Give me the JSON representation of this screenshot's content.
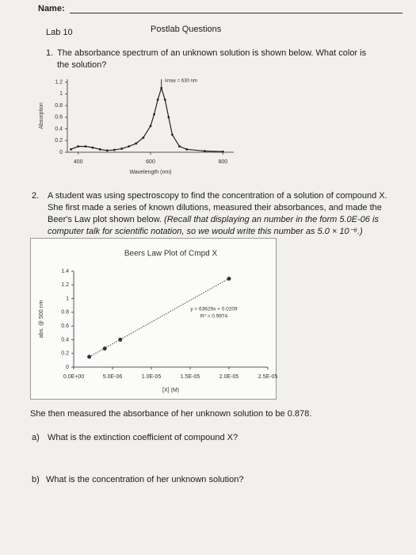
{
  "header": {
    "name_label": "Name:",
    "lab": "Lab 10",
    "title": "Postlab Questions"
  },
  "questions": [
    {
      "number": "1.",
      "text": "The absorbance spectrum of an unknown solution is shown below.  What color is the solution?"
    },
    {
      "number": "2.",
      "text": "A student was using spectroscopy to find the concentration of a solution of compound X. She first made a series of known dilutions, measured their absorbances, and made the Beer's Law plot shown below.",
      "note": "(Recall that displaying an number in the form 5.0E-06 is computer talk for scientific notation, so we would write this number as 5.0 × 10⁻⁶.)"
    }
  ],
  "chart_data": [
    {
      "type": "line",
      "xlabel": "Wavelength (nm)",
      "ylabel": "Absorption",
      "annotation": "λmax = 630 nm",
      "color": "#222222",
      "x": [
        380,
        400,
        420,
        440,
        460,
        480,
        500,
        520,
        540,
        560,
        580,
        600,
        610,
        620,
        630,
        640,
        650,
        660,
        680,
        700,
        750,
        800
      ],
      "values": [
        0.05,
        0.1,
        0.1,
        0.08,
        0.05,
        0.03,
        0.04,
        0.06,
        0.1,
        0.15,
        0.25,
        0.45,
        0.65,
        0.9,
        1.1,
        0.9,
        0.6,
        0.3,
        0.1,
        0.05,
        0.02,
        0.01
      ],
      "xlim": [
        370,
        830
      ],
      "ylim": [
        0,
        1.25
      ],
      "xticks": [
        400,
        600,
        800
      ],
      "yticks": [
        0,
        0.2,
        0.4,
        0.6,
        0.8,
        1,
        1.2
      ]
    },
    {
      "type": "scatter",
      "title": "Beers Law Plot of Cmpd X",
      "xlabel": "[X] (M)",
      "ylabel": "abs. @ 500 nm",
      "color": "#333333",
      "x": [
        2e-06,
        4e-06,
        6e-06,
        2e-05
      ],
      "values": [
        0.15,
        0.27,
        0.4,
        1.29
      ],
      "xlim": [
        0,
        2.5e-05
      ],
      "ylim": [
        0,
        1.4
      ],
      "xticks": [
        {
          "value": 0,
          "label": "0.0E+00"
        },
        {
          "value": 5e-06,
          "label": "5.0E-06"
        },
        {
          "value": 1e-05,
          "label": "1.0E-05"
        },
        {
          "value": 1.5e-05,
          "label": "1.5E-05"
        },
        {
          "value": 2e-05,
          "label": "2.0E-05"
        },
        {
          "value": 2.5e-05,
          "label": "2.5E-05"
        }
      ],
      "yticks": [
        0,
        0.2,
        0.4,
        0.6,
        0.8,
        1,
        1.2,
        1.4
      ],
      "trendline": {
        "equation": "y = 63629x + 0.0209",
        "r_squared": "R² = 0.9974",
        "slope": 63629,
        "intercept": 0.0209
      }
    }
  ],
  "after_text": "She then measured the absorbance of her unknown solution to be 0.878.",
  "subquestions": [
    {
      "label": "a)",
      "text": "What is the extinction coefficient of compound X?"
    },
    {
      "label": "b)",
      "text": "What is the concentration of her unknown solution?"
    }
  ]
}
